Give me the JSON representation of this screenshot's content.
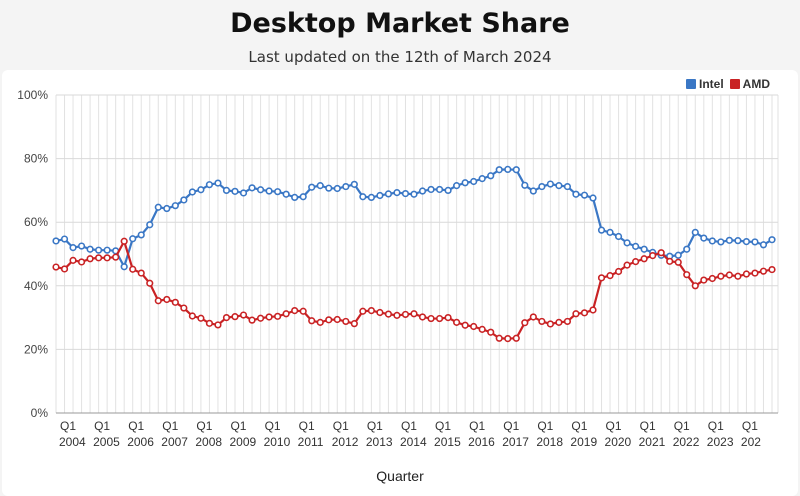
{
  "header": {
    "title": "Desktop Market Share",
    "subtitle": "Last updated on the 12th of March 2024"
  },
  "colors": {
    "intel": "#3a77c5",
    "amd": "#c92224",
    "grid": "#e2e2e2"
  },
  "chart_data": {
    "type": "line",
    "title": "Desktop Market Share",
    "subtitle": "Last updated on the 12th of March 2024",
    "xlabel": "Quarter",
    "ylabel": "",
    "ylim": [
      0,
      100
    ],
    "y_ticks": [
      "0%",
      "20%",
      "40%",
      "60%",
      "80%",
      "100%"
    ],
    "x_tick_labels": [
      {
        "q": "Q1",
        "year": "2004"
      },
      {
        "q": "Q1",
        "year": "2005"
      },
      {
        "q": "Q1",
        "year": "2006"
      },
      {
        "q": "Q1",
        "year": "2007"
      },
      {
        "q": "Q1",
        "year": "2008"
      },
      {
        "q": "Q1",
        "year": "2009"
      },
      {
        "q": "Q1",
        "year": "2010"
      },
      {
        "q": "Q1",
        "year": "2011"
      },
      {
        "q": "Q1",
        "year": "2012"
      },
      {
        "q": "Q1",
        "year": "2013"
      },
      {
        "q": "Q1",
        "year": "2014"
      },
      {
        "q": "Q1",
        "year": "2015"
      },
      {
        "q": "Q1",
        "year": "2016"
      },
      {
        "q": "Q1",
        "year": "2017"
      },
      {
        "q": "Q1",
        "year": "2018"
      },
      {
        "q": "Q1",
        "year": "2019"
      },
      {
        "q": "Q1",
        "year": "2020"
      },
      {
        "q": "Q1",
        "year": "2021"
      },
      {
        "q": "Q1",
        "year": "2022"
      },
      {
        "q": "Q1",
        "year": "2023"
      },
      {
        "q": "Q1",
        "year": "202"
      }
    ],
    "legend": {
      "position": "top-right"
    },
    "grid": true,
    "series": [
      {
        "name": "Intel",
        "values": [
          54.1,
          54.7,
          52.0,
          52.5,
          51.5,
          51.2,
          51.2,
          51.0,
          46.0,
          54.8,
          56.0,
          59.2,
          64.7,
          64.3,
          65.2,
          67.0,
          69.5,
          70.2,
          71.8,
          72.3,
          70.0,
          69.7,
          69.2,
          70.8,
          70.2,
          69.8,
          69.6,
          68.8,
          67.8,
          68.0,
          71.0,
          71.5,
          70.7,
          70.6,
          71.2,
          71.9,
          68.0,
          67.8,
          68.4,
          68.9,
          69.3,
          69.0,
          68.8,
          69.8,
          70.3,
          70.3,
          70.0,
          71.5,
          72.4,
          72.8,
          73.7,
          74.6,
          76.5,
          76.6,
          76.5,
          71.6,
          69.8,
          71.2,
          72.0,
          71.5,
          71.2,
          68.8,
          68.5,
          67.6,
          57.5,
          56.8,
          55.5,
          53.5,
          52.4,
          51.5,
          50.5,
          49.6,
          49.3,
          49.6,
          51.5,
          56.8,
          55.0,
          54.1,
          53.8,
          54.3,
          54.2,
          53.9,
          53.8,
          52.9,
          54.5
        ],
        "color": "#3a77c5"
      },
      {
        "name": "AMD",
        "values": [
          45.9,
          45.3,
          48.0,
          47.5,
          48.5,
          48.8,
          48.8,
          49.0,
          54.0,
          45.2,
          44.0,
          40.8,
          35.3,
          35.7,
          34.8,
          33.0,
          30.5,
          29.8,
          28.2,
          27.7,
          30.0,
          30.3,
          30.8,
          29.2,
          29.8,
          30.2,
          30.4,
          31.2,
          32.2,
          32.0,
          29.0,
          28.5,
          29.3,
          29.4,
          28.8,
          28.1,
          32.0,
          32.2,
          31.6,
          31.1,
          30.7,
          31.0,
          31.2,
          30.2,
          29.7,
          29.7,
          30.0,
          28.5,
          27.6,
          27.2,
          26.3,
          25.4,
          23.5,
          23.4,
          23.5,
          28.4,
          30.2,
          28.8,
          28.0,
          28.5,
          28.8,
          31.2,
          31.5,
          32.4,
          42.5,
          43.2,
          44.5,
          46.5,
          47.6,
          48.5,
          49.5,
          50.4,
          47.7,
          47.4,
          43.5,
          40.0,
          41.8,
          42.3,
          43.0,
          43.4,
          43.0,
          43.7,
          44.0,
          44.6,
          45.1
        ],
        "color": "#c92224"
      }
    ]
  }
}
